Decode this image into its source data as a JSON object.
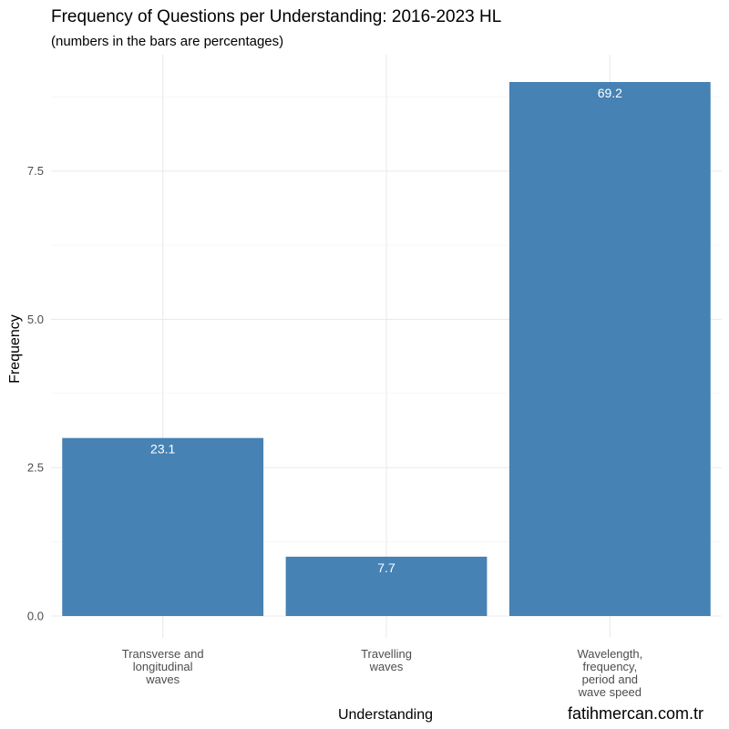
{
  "chart_data": {
    "type": "bar",
    "title": "Frequency of Questions per Understanding: 2016-2023 HL",
    "subtitle": "(numbers in the bars are percentages)",
    "xlabel": "Understanding",
    "ylabel": "Frequency",
    "categories": [
      [
        "Transverse and",
        "longitudinal",
        "waves"
      ],
      [
        "Travelling",
        "waves"
      ],
      [
        "Wavelength,",
        "frequency,",
        "period and",
        "wave speed"
      ]
    ],
    "values": [
      3,
      1,
      9
    ],
    "bar_labels": [
      "23.1",
      "7.7",
      "69.2"
    ],
    "ylim": [
      0,
      9.45
    ],
    "yticks": [
      0,
      2.5,
      5,
      7.5
    ],
    "ytick_labels": [
      "0.0",
      "2.5",
      "5.0",
      "7.5"
    ],
    "grid": true,
    "bar_color": "#4682b4",
    "caption": "fatihmercan.com.tr"
  }
}
